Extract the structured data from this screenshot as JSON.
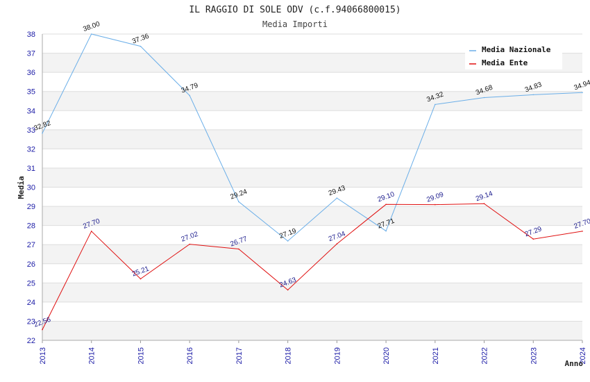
{
  "chart_data": {
    "type": "line",
    "title": "IL RAGGIO DI SOLE ODV (c.f.94066800015)",
    "subtitle": "Media Importi",
    "xlabel": "Anno",
    "ylabel": "Media",
    "ylim": [
      22,
      38
    ],
    "yticks": [
      "22",
      "23",
      "24",
      "25",
      "26",
      "27",
      "28",
      "29",
      "30",
      "31",
      "32",
      "33",
      "34",
      "35",
      "36",
      "37",
      "38"
    ],
    "categories": [
      "2013",
      "2014",
      "2015",
      "2016",
      "2017",
      "2018",
      "2019",
      "2020",
      "2021",
      "2022",
      "2023",
      "2024"
    ],
    "legend_position": "top-right",
    "series": [
      {
        "name": "Media Nazionale",
        "color": "#6aaee8",
        "values": [
          32.82,
          38.0,
          37.36,
          34.79,
          29.24,
          27.19,
          29.43,
          27.71,
          34.32,
          34.68,
          34.83,
          34.94
        ],
        "labels": [
          "32.82",
          "38.00",
          "37.36",
          "34.79",
          "29.24",
          "27.19",
          "29.43",
          "27.71",
          "34.32",
          "34.68",
          "34.83",
          "34.94"
        ]
      },
      {
        "name": "Media Ente",
        "color": "#e01010",
        "values": [
          22.56,
          27.7,
          25.21,
          27.02,
          26.77,
          24.63,
          27.04,
          29.1,
          29.09,
          29.14,
          27.29,
          27.7
        ],
        "labels": [
          "22.56",
          "27.70",
          "25.21",
          "27.02",
          "26.77",
          "24.63",
          "27.04",
          "29.10",
          "29.09",
          "29.14",
          "27.29",
          "27.70"
        ]
      }
    ]
  }
}
